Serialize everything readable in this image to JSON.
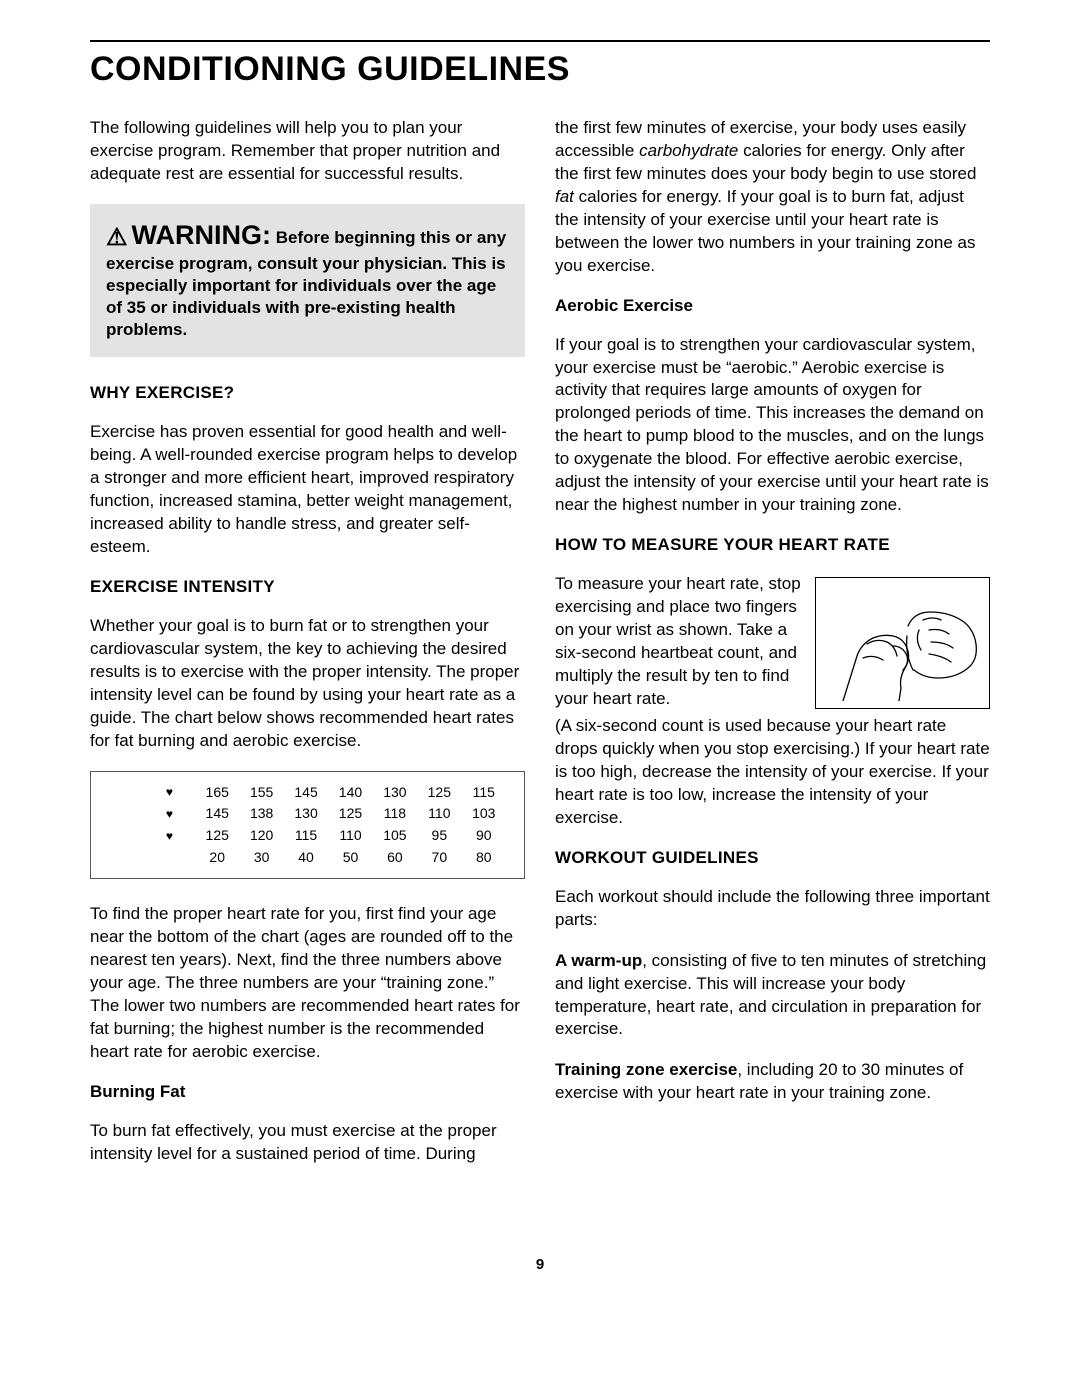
{
  "page_title": "CONDITIONING GUIDELINES",
  "page_number": "9",
  "intro": "The following guidelines will help you to plan your exercise program. Remember that proper nutrition and adequate rest are essential for successful results.",
  "warning": {
    "big": "WARNING:",
    "rest": " Before beginning this or any exercise program, consult your physician. This is especially important for individuals over the age of 35 or individuals with pre-existing health problems."
  },
  "sections": {
    "why_head": "WHY EXERCISE?",
    "why_body": "Exercise has proven essential for good health and well-being. A well-rounded exercise program helps to develop a stronger and more efficient heart, improved respiratory function, increased stamina, better weight management, increased ability to handle stress, and greater self-esteem.",
    "intensity_head": "EXERCISE INTENSITY",
    "intensity_body": "Whether your goal is to burn fat or to strengthen your cardiovascular system, the key to achieving the desired results is to exercise with the proper intensity. The proper intensity level can be found by using your heart rate as a guide. The chart below shows recommended heart rates for fat burning and aerobic exercise.",
    "intensity_after": "To find the proper heart rate for you, first find your age near the bottom of the chart (ages are rounded off to the nearest ten years). Next, find the three numbers above your age. The three numbers are your “training zone.” The lower two numbers are recommended heart rates for fat burning; the highest number is the recommended heart rate for aerobic exercise.",
    "burning_head": "Burning Fat",
    "burning_body1": "To burn fat effectively, you must exercise at the proper intensity level for a sustained period of time. During",
    "burning_body2a": "the first few minutes of exercise, your body uses easily accessible ",
    "burning_body2b_ital": "carbohydrate",
    "burning_body2c": " calories for energy. Only after the first few minutes does your body begin to use stored ",
    "burning_body2d_ital": "fat",
    "burning_body2e": " calories for energy. If your goal is to burn fat, adjust the intensity of your exercise until your heart rate is between the lower two numbers in your training zone as you exercise.",
    "aerobic_head": "Aerobic Exercise",
    "aerobic_body": "If your goal is to strengthen your cardiovascular system, your exercise must be “aerobic.” Aerobic exercise is activity that requires large amounts of oxygen for prolonged periods of time. This increases the demand on the heart to pump blood to the muscles, and on the lungs to oxygenate the blood. For effective aerobic exercise, adjust the intensity of your exercise until your heart rate is near the highest number in your training zone.",
    "measure_head": "HOW TO MEASURE YOUR HEART RATE",
    "measure_body1": "To measure your heart rate, stop exercising and place two fingers on your wrist as shown. Take a six-second heartbeat count, and multiply the result by ten to find your heart rate.",
    "measure_body2": "(A six-second count is used because your heart rate drops quickly when you stop exercising.) If your heart rate is too high, decrease the intensity of your exercise. If your heart rate is too low, increase the intensity of your exercise.",
    "workout_head": "WORKOUT GUIDELINES",
    "workout_intro": "Each workout should include the following three important parts:",
    "warmup_lead": "A warm-up",
    "warmup_rest": ", consisting of five to ten minutes of stretching and light exercise. This will increase your body temperature, heart rate, and circulation in preparation for exercise.",
    "training_lead": "Training zone exercise",
    "training_rest": ", including 20 to 30 minutes of exercise with your heart rate in your training zone."
  },
  "hr_chart": {
    "rows": [
      {
        "heart": "♥",
        "cells": [
          "165",
          "155",
          "145",
          "140",
          "130",
          "125",
          "115"
        ]
      },
      {
        "heart": "♥",
        "cells": [
          "145",
          "138",
          "130",
          "125",
          "118",
          "110",
          "103"
        ]
      },
      {
        "heart": "♥",
        "cells": [
          "125",
          "120",
          "115",
          "110",
          "105",
          "95",
          "90"
        ]
      },
      {
        "heart": "",
        "cells": [
          "20",
          "30",
          "40",
          "50",
          "60",
          "70",
          "80"
        ]
      }
    ],
    "heart_indents": [
      64,
      40,
      0,
      0
    ]
  }
}
